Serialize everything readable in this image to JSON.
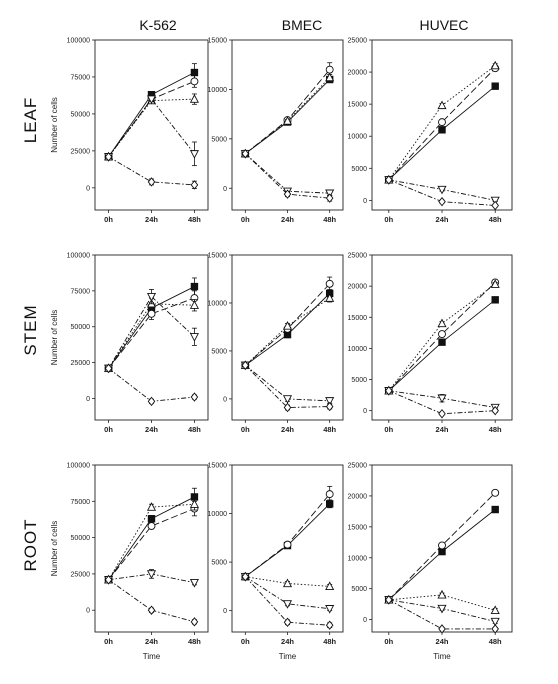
{
  "figure": {
    "columns": [
      "K-562",
      "BMEC",
      "HUVEC"
    ],
    "rows": [
      "LEAF",
      "STEM",
      "ROOT"
    ],
    "ylabel": "Number of cells",
    "xlabel": "Time"
  },
  "chart_data": [
    {
      "type": "line",
      "column": "K-562",
      "row": "LEAF",
      "categories": [
        "0h",
        "24h",
        "48h"
      ],
      "ylim": [
        -15000,
        100000
      ],
      "yticks": [
        0,
        25000,
        50000,
        75000,
        100000
      ],
      "series": [
        {
          "marker": "filled-square",
          "line": "solid",
          "values": [
            21000,
            63000,
            78000
          ],
          "err": [
            0,
            1500,
            6000
          ]
        },
        {
          "marker": "open-circle",
          "line": "long-dash",
          "values": [
            21000,
            60000,
            72000
          ],
          "err": [
            0,
            1500,
            4000
          ]
        },
        {
          "marker": "open-triangle-up",
          "line": "dotted",
          "values": [
            21000,
            59000,
            60000
          ],
          "err": [
            0,
            1500,
            3500
          ]
        },
        {
          "marker": "open-triangle-down",
          "line": "dash-dot",
          "values": [
            21000,
            60000,
            23000
          ],
          "err": [
            0,
            1500,
            8000
          ]
        },
        {
          "marker": "open-diamond",
          "line": "dash-dot",
          "values": [
            21000,
            4000,
            2000
          ],
          "err": [
            0,
            2000,
            2500
          ]
        }
      ]
    },
    {
      "type": "line",
      "column": "BMEC",
      "row": "LEAF",
      "categories": [
        "0h",
        "24h",
        "48h"
      ],
      "ylim": [
        -2200,
        15000
      ],
      "yticks": [
        0,
        5000,
        10000,
        15000
      ],
      "series": [
        {
          "marker": "filled-square",
          "line": "solid",
          "values": [
            3500,
            6700,
            11000
          ],
          "err": [
            0,
            150,
            300
          ]
        },
        {
          "marker": "open-circle",
          "line": "long-dash",
          "values": [
            3500,
            6900,
            12000
          ],
          "err": [
            0,
            150,
            700
          ]
        },
        {
          "marker": "open-triangle-up",
          "line": "dotted",
          "values": [
            3500,
            6800,
            11200
          ],
          "err": [
            0,
            150,
            300
          ]
        },
        {
          "marker": "open-triangle-down",
          "line": "dash-dot",
          "values": [
            3500,
            -300,
            -500
          ],
          "err": [
            0,
            250,
            250
          ]
        },
        {
          "marker": "open-diamond",
          "line": "dash-dot",
          "values": [
            3500,
            -600,
            -1000
          ],
          "err": [
            0,
            250,
            300
          ]
        }
      ]
    },
    {
      "type": "line",
      "column": "HUVEC",
      "row": "LEAF",
      "categories": [
        "0h",
        "24h",
        "48h"
      ],
      "ylim": [
        -1500,
        25000
      ],
      "yticks": [
        0,
        5000,
        10000,
        15000,
        20000,
        25000
      ],
      "series": [
        {
          "marker": "filled-square",
          "line": "solid",
          "values": [
            3200,
            11000,
            17800
          ],
          "err": [
            0,
            300,
            300
          ]
        },
        {
          "marker": "open-circle",
          "line": "long-dash",
          "values": [
            3200,
            12200,
            20600
          ],
          "err": [
            0,
            300,
            400
          ]
        },
        {
          "marker": "open-triangle-up",
          "line": "dotted",
          "values": [
            3200,
            14800,
            21000
          ],
          "err": [
            0,
            300,
            300
          ]
        },
        {
          "marker": "open-triangle-down",
          "line": "dash-dot",
          "values": [
            3200,
            1700,
            0
          ],
          "err": [
            0,
            250,
            200
          ]
        },
        {
          "marker": "open-diamond",
          "line": "dash-dot",
          "values": [
            3200,
            -200,
            -800
          ],
          "err": [
            0,
            250,
            250
          ]
        }
      ]
    },
    {
      "type": "line",
      "column": "K-562",
      "row": "STEM",
      "categories": [
        "0h",
        "24h",
        "48h"
      ],
      "ylim": [
        -15000,
        100000
      ],
      "yticks": [
        0,
        25000,
        50000,
        75000,
        100000
      ],
      "series": [
        {
          "marker": "filled-square",
          "line": "solid",
          "values": [
            21000,
            63000,
            78000
          ],
          "err": [
            0,
            4000,
            6000
          ]
        },
        {
          "marker": "open-circle",
          "line": "long-dash",
          "values": [
            21000,
            59000,
            70000
          ],
          "err": [
            0,
            4000,
            5000
          ]
        },
        {
          "marker": "open-triangle-up",
          "line": "dotted",
          "values": [
            21000,
            66000,
            65000
          ],
          "err": [
            0,
            4000,
            4000
          ]
        },
        {
          "marker": "open-triangle-down",
          "line": "dash-dot",
          "values": [
            21000,
            71000,
            43000
          ],
          "err": [
            0,
            5000,
            6000
          ]
        },
        {
          "marker": "open-diamond",
          "line": "dash-dot",
          "values": [
            21000,
            -2000,
            1000
          ],
          "err": [
            0,
            1500,
            1500
          ]
        }
      ]
    },
    {
      "type": "line",
      "column": "BMEC",
      "row": "STEM",
      "categories": [
        "0h",
        "24h",
        "48h"
      ],
      "ylim": [
        -2200,
        15000
      ],
      "yticks": [
        0,
        5000,
        10000,
        15000
      ],
      "series": [
        {
          "marker": "filled-square",
          "line": "solid",
          "values": [
            3500,
            6700,
            11000
          ],
          "err": [
            0,
            200,
            400
          ]
        },
        {
          "marker": "open-circle",
          "line": "long-dash",
          "values": [
            3500,
            7300,
            12000
          ],
          "err": [
            0,
            250,
            700
          ]
        },
        {
          "marker": "open-triangle-up",
          "line": "dotted",
          "values": [
            3500,
            7600,
            10500
          ],
          "err": [
            0,
            250,
            400
          ]
        },
        {
          "marker": "open-triangle-down",
          "line": "dash-dot",
          "values": [
            3500,
            0,
            -200
          ],
          "err": [
            0,
            250,
            250
          ]
        },
        {
          "marker": "open-diamond",
          "line": "dash-dot",
          "values": [
            3500,
            -900,
            -800
          ],
          "err": [
            0,
            250,
            250
          ]
        }
      ]
    },
    {
      "type": "line",
      "column": "HUVEC",
      "row": "STEM",
      "categories": [
        "0h",
        "24h",
        "48h"
      ],
      "ylim": [
        -1500,
        25000
      ],
      "yticks": [
        0,
        5000,
        10000,
        15000,
        20000,
        25000
      ],
      "series": [
        {
          "marker": "filled-square",
          "line": "solid",
          "values": [
            3200,
            11000,
            17800
          ],
          "err": [
            0,
            300,
            300
          ]
        },
        {
          "marker": "open-circle",
          "line": "long-dash",
          "values": [
            3200,
            12300,
            20600
          ],
          "err": [
            0,
            300,
            300
          ]
        },
        {
          "marker": "open-triangle-up",
          "line": "dotted",
          "values": [
            3200,
            14000,
            20300
          ],
          "err": [
            0,
            300,
            300
          ]
        },
        {
          "marker": "open-triangle-down",
          "line": "dash-dot",
          "values": [
            3200,
            2000,
            500
          ],
          "err": [
            0,
            600,
            300
          ]
        },
        {
          "marker": "open-diamond",
          "line": "dash-dot",
          "values": [
            3200,
            -500,
            0
          ],
          "err": [
            0,
            250,
            300
          ]
        }
      ]
    },
    {
      "type": "line",
      "column": "K-562",
      "row": "ROOT",
      "categories": [
        "0h",
        "24h",
        "48h"
      ],
      "ylim": [
        -15000,
        100000
      ],
      "yticks": [
        0,
        25000,
        50000,
        75000,
        100000
      ],
      "series": [
        {
          "marker": "filled-square",
          "line": "solid",
          "values": [
            21000,
            63000,
            78000
          ],
          "err": [
            0,
            2000,
            6000
          ]
        },
        {
          "marker": "open-circle",
          "line": "long-dash",
          "values": [
            21000,
            58000,
            70000
          ],
          "err": [
            0,
            2000,
            5000
          ]
        },
        {
          "marker": "open-triangle-up",
          "line": "dotted",
          "values": [
            21000,
            71000,
            73000
          ],
          "err": [
            0,
            2000,
            4000
          ]
        },
        {
          "marker": "open-triangle-down",
          "line": "dash-dot",
          "values": [
            21000,
            25000,
            19000
          ],
          "err": [
            0,
            3000,
            1500
          ]
        },
        {
          "marker": "open-diamond",
          "line": "dash-dot",
          "values": [
            21000,
            0,
            -8000
          ],
          "err": [
            0,
            1500,
            1500
          ]
        }
      ]
    },
    {
      "type": "line",
      "column": "BMEC",
      "row": "ROOT",
      "categories": [
        "0h",
        "24h",
        "48h"
      ],
      "ylim": [
        -2200,
        15000
      ],
      "yticks": [
        0,
        5000,
        10000,
        15000
      ],
      "series": [
        {
          "marker": "filled-square",
          "line": "solid",
          "values": [
            3500,
            6700,
            11000
          ],
          "err": [
            0,
            150,
            400
          ]
        },
        {
          "marker": "open-circle",
          "line": "long-dash",
          "values": [
            3500,
            6800,
            12000
          ],
          "err": [
            0,
            150,
            800
          ]
        },
        {
          "marker": "open-triangle-up",
          "line": "dotted",
          "values": [
            3500,
            2800,
            2500
          ],
          "err": [
            0,
            200,
            200
          ]
        },
        {
          "marker": "open-triangle-down",
          "line": "dash-dot",
          "values": [
            3500,
            700,
            200
          ],
          "err": [
            0,
            200,
            200
          ]
        },
        {
          "marker": "open-diamond",
          "line": "dash-dot",
          "values": [
            3500,
            -1200,
            -1500
          ],
          "err": [
            0,
            250,
            250
          ]
        }
      ]
    },
    {
      "type": "line",
      "column": "HUVEC",
      "row": "ROOT",
      "categories": [
        "0h",
        "24h",
        "48h"
      ],
      "ylim": [
        -2000,
        25000
      ],
      "yticks": [
        0,
        5000,
        10000,
        15000,
        20000,
        25000
      ],
      "series": [
        {
          "marker": "filled-square",
          "line": "solid",
          "values": [
            3200,
            11000,
            17800
          ],
          "err": [
            0,
            300,
            300
          ]
        },
        {
          "marker": "open-circle",
          "line": "long-dash",
          "values": [
            3200,
            12000,
            20500
          ],
          "err": [
            0,
            300,
            300
          ]
        },
        {
          "marker": "open-triangle-up",
          "line": "dotted",
          "values": [
            3200,
            4000,
            1500
          ],
          "err": [
            0,
            300,
            300
          ]
        },
        {
          "marker": "open-triangle-down",
          "line": "dash-dot",
          "values": [
            3200,
            1800,
            -300
          ],
          "err": [
            0,
            300,
            300
          ]
        },
        {
          "marker": "open-diamond",
          "line": "dash-dot",
          "values": [
            3200,
            -1500,
            -1500
          ],
          "err": [
            0,
            250,
            250
          ]
        }
      ]
    }
  ]
}
